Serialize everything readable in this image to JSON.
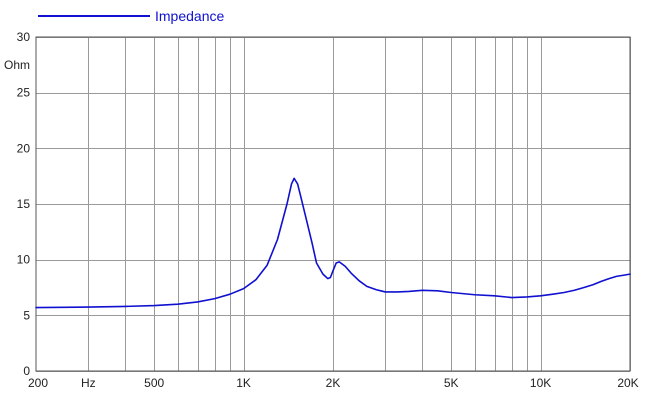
{
  "chart_data": {
    "type": "line",
    "x_scale": "log",
    "xlim": [
      200,
      20000
    ],
    "ylim": [
      0,
      30
    ],
    "ylabel": "Ohm",
    "grid": true,
    "legend_placement": "top-left",
    "x_ticks": [
      {
        "value": 200,
        "label": "200"
      },
      {
        "value": 300,
        "label": "Hz"
      },
      {
        "value": 500,
        "label": "500"
      },
      {
        "value": 1000,
        "label": "1K"
      },
      {
        "value": 2000,
        "label": "2K"
      },
      {
        "value": 5000,
        "label": "5K"
      },
      {
        "value": 10000,
        "label": "10K"
      },
      {
        "value": 20000,
        "label": "20K"
      }
    ],
    "x_gridlines": [
      300,
      400,
      500,
      600,
      700,
      800,
      900,
      1000,
      2000,
      3000,
      4000,
      5000,
      6000,
      7000,
      8000,
      9000,
      10000,
      20000
    ],
    "y_ticks": [
      {
        "value": 0,
        "label": "0"
      },
      {
        "value": 5,
        "label": "5"
      },
      {
        "value": 10,
        "label": "10"
      },
      {
        "value": 15,
        "label": "15"
      },
      {
        "value": 20,
        "label": "20"
      },
      {
        "value": 25,
        "label": "25"
      },
      {
        "value": 30,
        "label": "30"
      }
    ],
    "series": [
      {
        "name": "Impedance",
        "color": "#1010d0",
        "points": [
          [
            200,
            5.7
          ],
          [
            250,
            5.72
          ],
          [
            300,
            5.74
          ],
          [
            400,
            5.8
          ],
          [
            500,
            5.88
          ],
          [
            600,
            6.0
          ],
          [
            700,
            6.2
          ],
          [
            800,
            6.5
          ],
          [
            900,
            6.9
          ],
          [
            1000,
            7.4
          ],
          [
            1100,
            8.2
          ],
          [
            1200,
            9.5
          ],
          [
            1300,
            11.8
          ],
          [
            1400,
            15.0
          ],
          [
            1450,
            16.8
          ],
          [
            1480,
            17.3
          ],
          [
            1520,
            16.8
          ],
          [
            1560,
            15.6
          ],
          [
            1620,
            13.8
          ],
          [
            1700,
            11.5
          ],
          [
            1760,
            9.7
          ],
          [
            1850,
            8.7
          ],
          [
            1920,
            8.3
          ],
          [
            1960,
            8.4
          ],
          [
            2000,
            9.0
          ],
          [
            2050,
            9.7
          ],
          [
            2100,
            9.8
          ],
          [
            2200,
            9.4
          ],
          [
            2300,
            8.8
          ],
          [
            2450,
            8.1
          ],
          [
            2600,
            7.6
          ],
          [
            2800,
            7.3
          ],
          [
            3000,
            7.1
          ],
          [
            3300,
            7.1
          ],
          [
            3600,
            7.15
          ],
          [
            4000,
            7.25
          ],
          [
            4500,
            7.2
          ],
          [
            5000,
            7.05
          ],
          [
            6000,
            6.85
          ],
          [
            7000,
            6.75
          ],
          [
            8000,
            6.6
          ],
          [
            9000,
            6.65
          ],
          [
            10000,
            6.75
          ],
          [
            11000,
            6.9
          ],
          [
            12000,
            7.05
          ],
          [
            13000,
            7.25
          ],
          [
            14000,
            7.5
          ],
          [
            15000,
            7.75
          ],
          [
            16000,
            8.05
          ],
          [
            17000,
            8.3
          ],
          [
            18000,
            8.5
          ],
          [
            19000,
            8.6
          ],
          [
            20000,
            8.7
          ]
        ]
      }
    ]
  }
}
